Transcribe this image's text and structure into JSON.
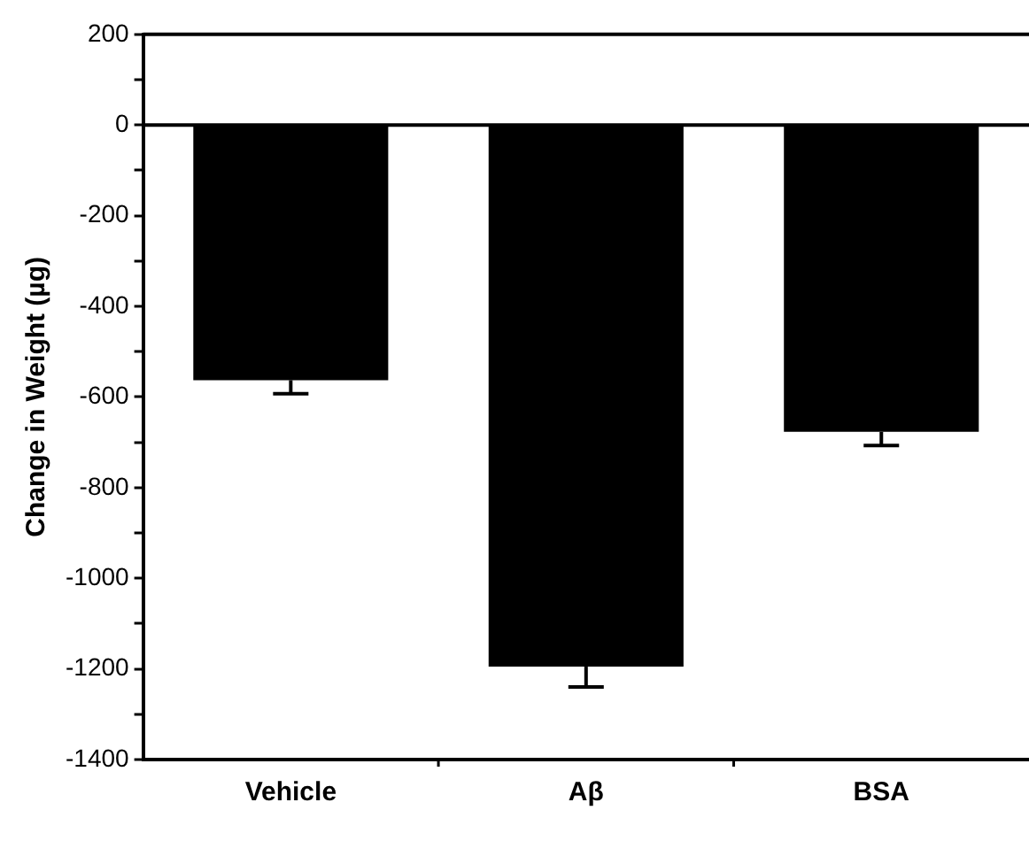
{
  "chart_data": {
    "type": "bar",
    "ylabel": "Change in Weight (µg)",
    "categories": [
      "Vehicle",
      "Aβ",
      "BSA"
    ],
    "values": [
      -563,
      -1195,
      -677
    ],
    "errors": [
      [
        -593,
        -563
      ],
      [
        -1240,
        -1195
      ],
      [
        -707,
        -677
      ]
    ],
    "color": "#000000",
    "ylim": [
      -1400,
      200
    ],
    "yticks": [
      -1400,
      {
        "value": -1300,
        "label": null
      },
      -1200,
      {
        "value": -1100,
        "label": null
      },
      -1000,
      {
        "value": -900,
        "label": null
      },
      -800,
      {
        "value": -700,
        "label": null
      },
      -600,
      {
        "value": -500,
        "label": null
      },
      -400,
      {
        "value": -300,
        "label": null
      },
      -200,
      {
        "value": -100,
        "label": null
      },
      0,
      {
        "value": 100,
        "label": null
      },
      200
    ],
    "ref_lines": [
      {
        "axis": "y",
        "value": 0,
        "color": "#000000"
      }
    ],
    "grid": false,
    "legend": false
  }
}
